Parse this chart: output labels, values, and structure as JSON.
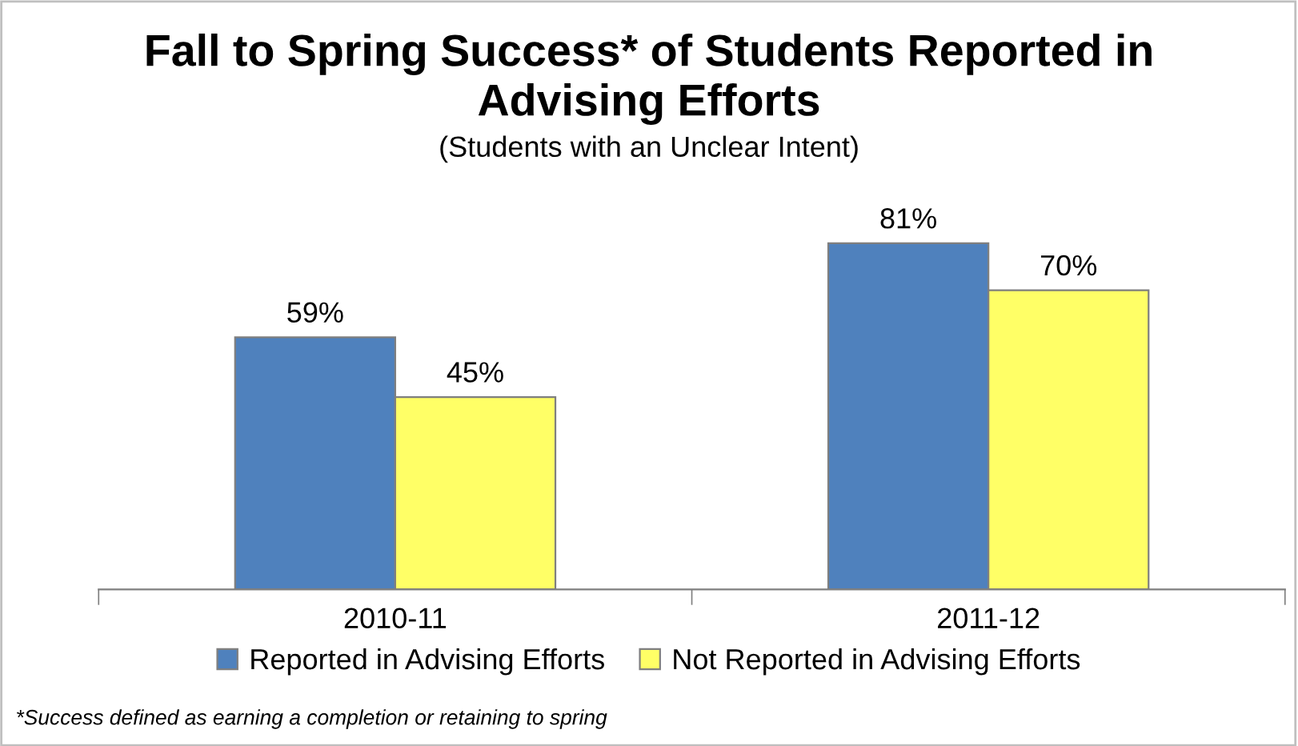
{
  "chart_data": {
    "type": "bar",
    "title": "Fall to Spring Success* of Students Reported in\nAdvising Efforts",
    "subtitle": "(Students with an Unclear Intent)",
    "categories": [
      "2010-11",
      "2011-12"
    ],
    "series": [
      {
        "name": "Reported in Advising Efforts",
        "color": "#4f81bd",
        "values": [
          59,
          81
        ],
        "value_labels": [
          "59%",
          "81%"
        ]
      },
      {
        "name": "Not Reported in Advising Efforts",
        "color": "#ffff66",
        "values": [
          45,
          70
        ],
        "value_labels": [
          "45%",
          "70%"
        ]
      }
    ],
    "tick_labels": "x",
    "grid": false,
    "legend": "bottom",
    "annotations": [
      "*Success defined as earning a completion or retaining to spring"
    ]
  }
}
